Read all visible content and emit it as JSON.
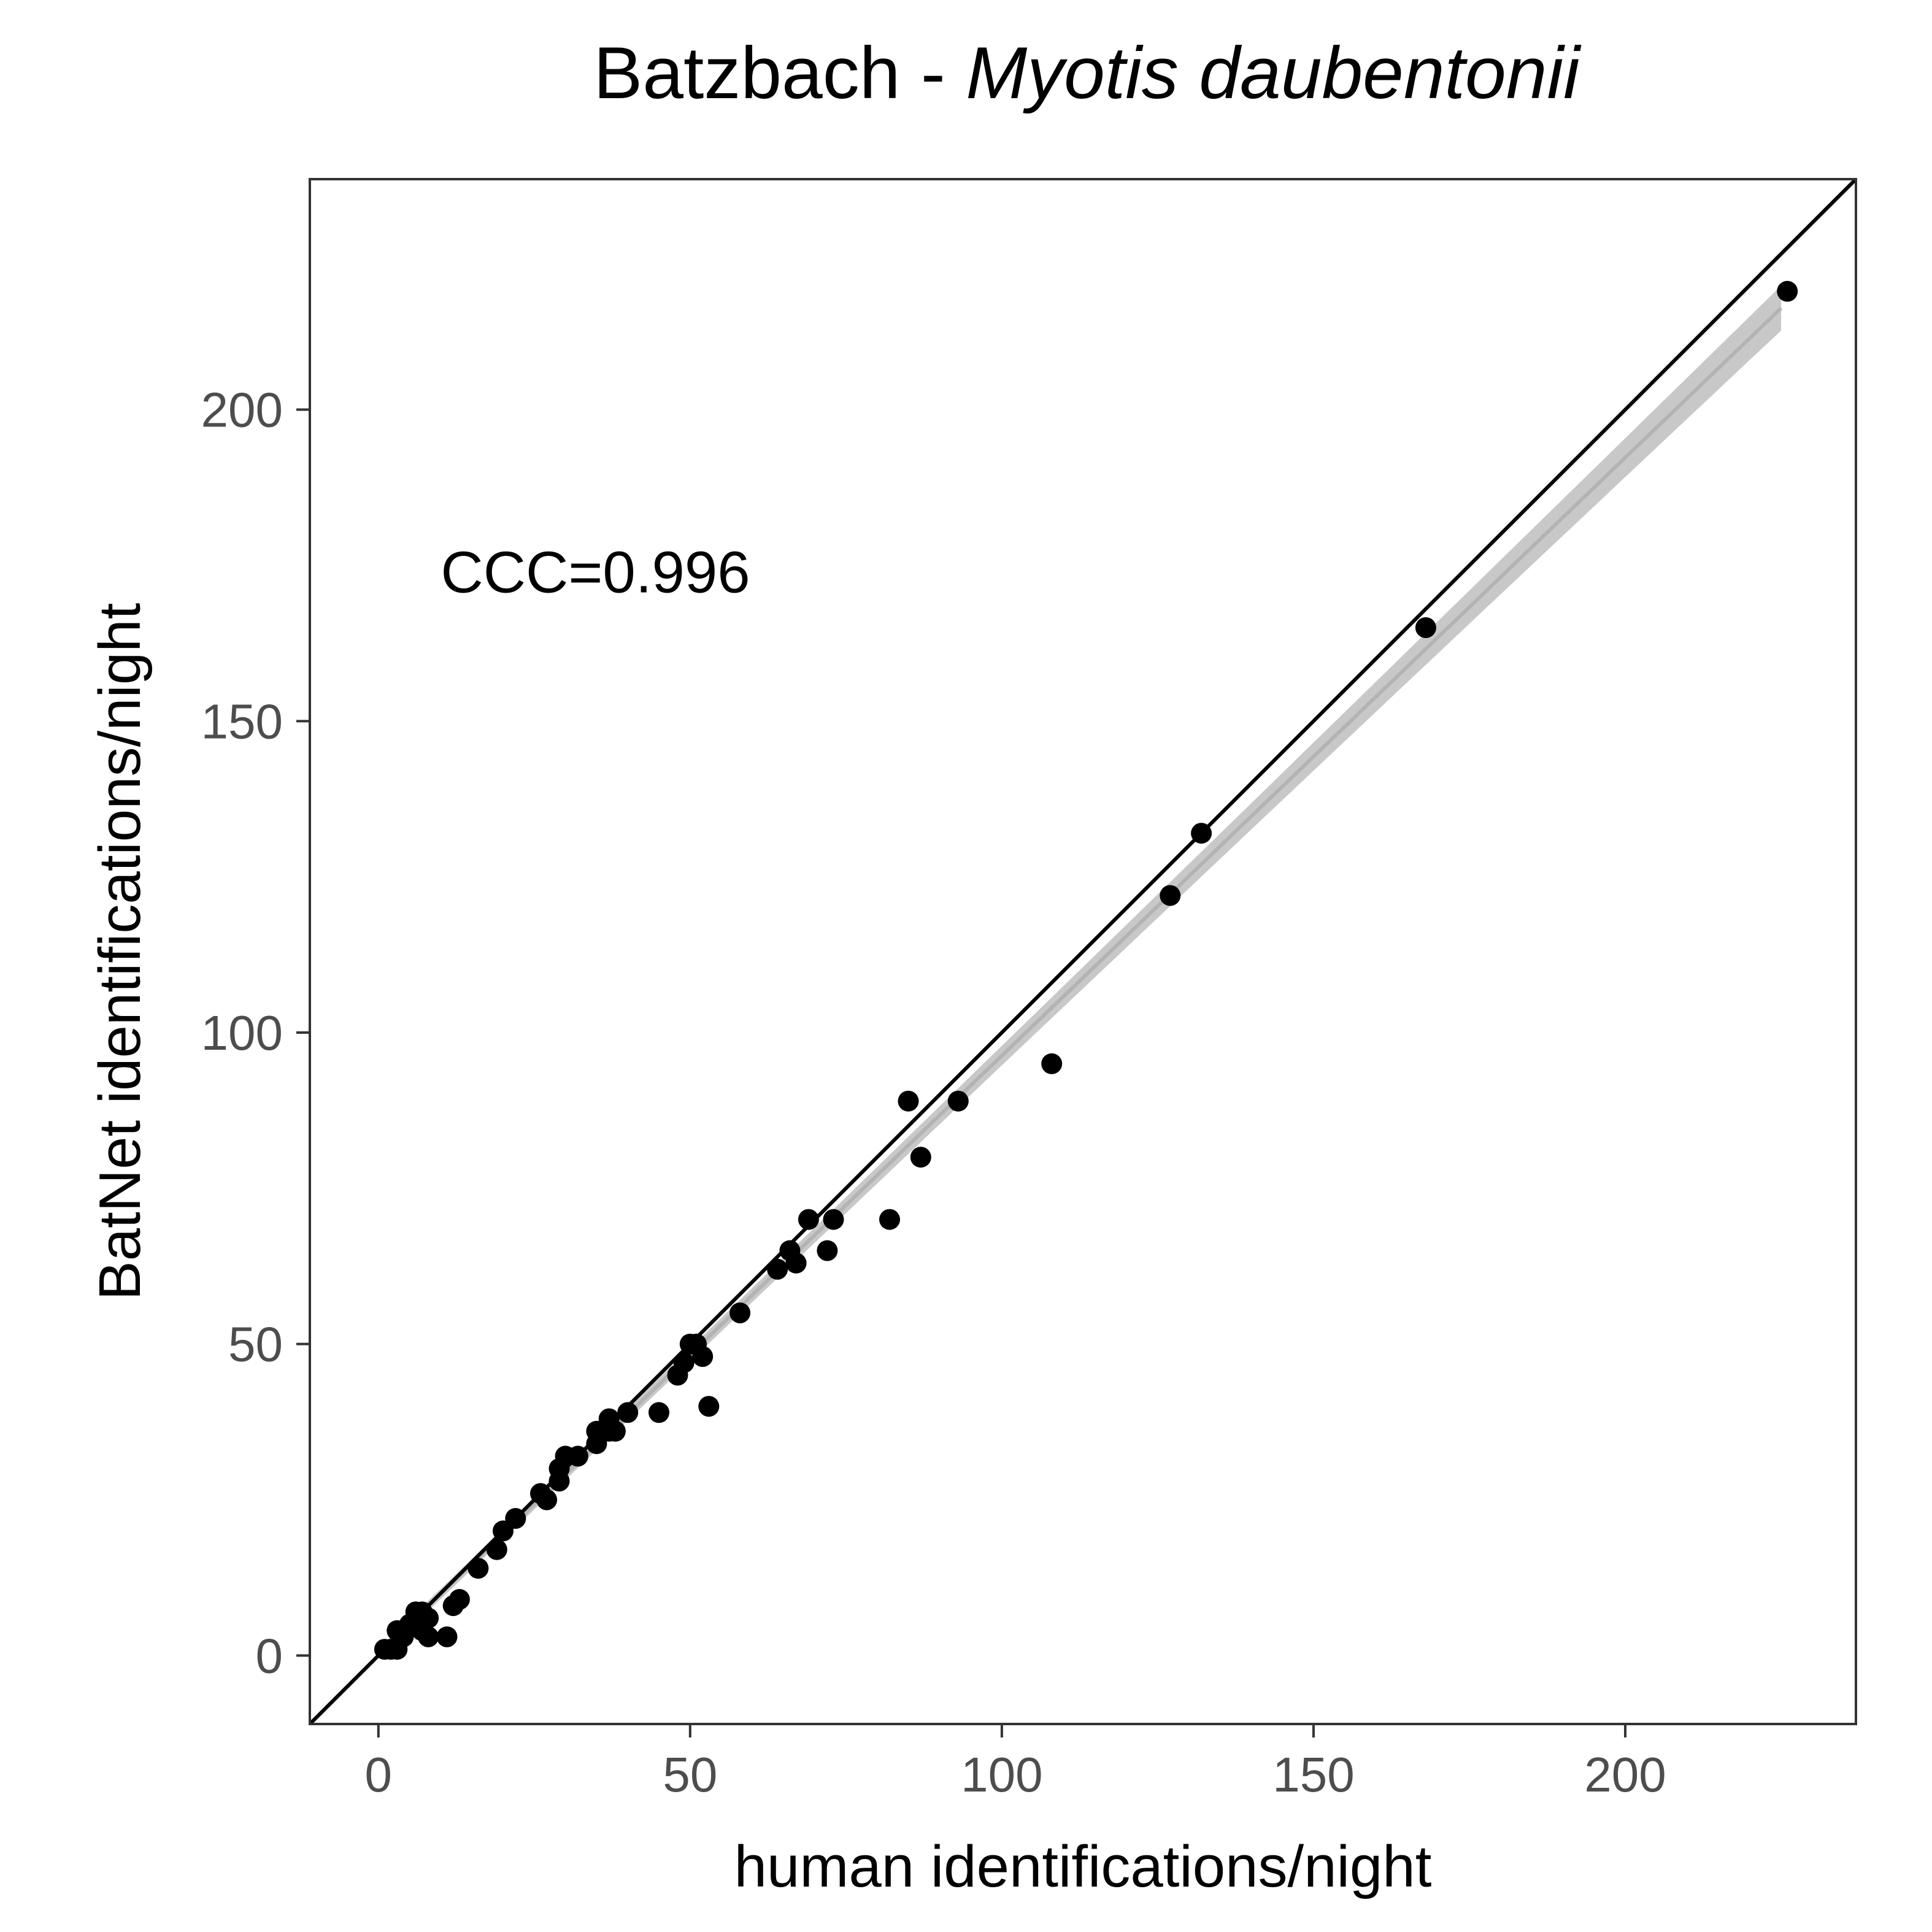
{
  "chart_data": {
    "type": "scatter",
    "title": "Batzbach - ",
    "title_species": "Myotis daubentonii",
    "xlabel": "human identifications/night",
    "ylabel": "BatNet identifications/night",
    "xlim": [
      -11,
      237
    ],
    "ylim": [
      -11,
      237
    ],
    "x_ticks": [
      0,
      50,
      100,
      150,
      200
    ],
    "y_ticks": [
      0,
      50,
      100,
      150,
      200
    ],
    "x_tick_labels": [
      "0",
      "50",
      "100",
      "150",
      "200"
    ],
    "y_tick_labels": [
      "0",
      "50",
      "100",
      "150",
      "200"
    ],
    "annotation": {
      "text": "CCC=0.996",
      "x": 10,
      "y": 174
    },
    "identity_line": {
      "slope": 1,
      "intercept": 0
    },
    "fit_line": {
      "x_start": 0,
      "x_end": 225,
      "slope": 0.96,
      "intercept": 0.3
    },
    "point_color": "#000000",
    "fit_band_color": "#bebebe",
    "grid": false,
    "points": [
      [
        1,
        1
      ],
      [
        2,
        1
      ],
      [
        3,
        4
      ],
      [
        3,
        1
      ],
      [
        4,
        3
      ],
      [
        5,
        5
      ],
      [
        6,
        7
      ],
      [
        6,
        5
      ],
      [
        7,
        7
      ],
      [
        7,
        4
      ],
      [
        8,
        6
      ],
      [
        8,
        3
      ],
      [
        11,
        3
      ],
      [
        12,
        8
      ],
      [
        13,
        9
      ],
      [
        16,
        14
      ],
      [
        19,
        17
      ],
      [
        20,
        20
      ],
      [
        22,
        22
      ],
      [
        26,
        26
      ],
      [
        27,
        25
      ],
      [
        29,
        30
      ],
      [
        29,
        28
      ],
      [
        30,
        32
      ],
      [
        32,
        32
      ],
      [
        35,
        36
      ],
      [
        35,
        34
      ],
      [
        37,
        38
      ],
      [
        37,
        36
      ],
      [
        38,
        36
      ],
      [
        40,
        39
      ],
      [
        45,
        39
      ],
      [
        48,
        45
      ],
      [
        49,
        47
      ],
      [
        50,
        50
      ],
      [
        51,
        50
      ],
      [
        52,
        48
      ],
      [
        53,
        40
      ],
      [
        58,
        55
      ],
      [
        64,
        62
      ],
      [
        66,
        65
      ],
      [
        67,
        63
      ],
      [
        69,
        70
      ],
      [
        72,
        65
      ],
      [
        73,
        70
      ],
      [
        82,
        70
      ],
      [
        85,
        89
      ],
      [
        87,
        80
      ],
      [
        93,
        89
      ],
      [
        108,
        95
      ],
      [
        127,
        122
      ],
      [
        132,
        132
      ],
      [
        168,
        165
      ],
      [
        226,
        219
      ]
    ]
  }
}
